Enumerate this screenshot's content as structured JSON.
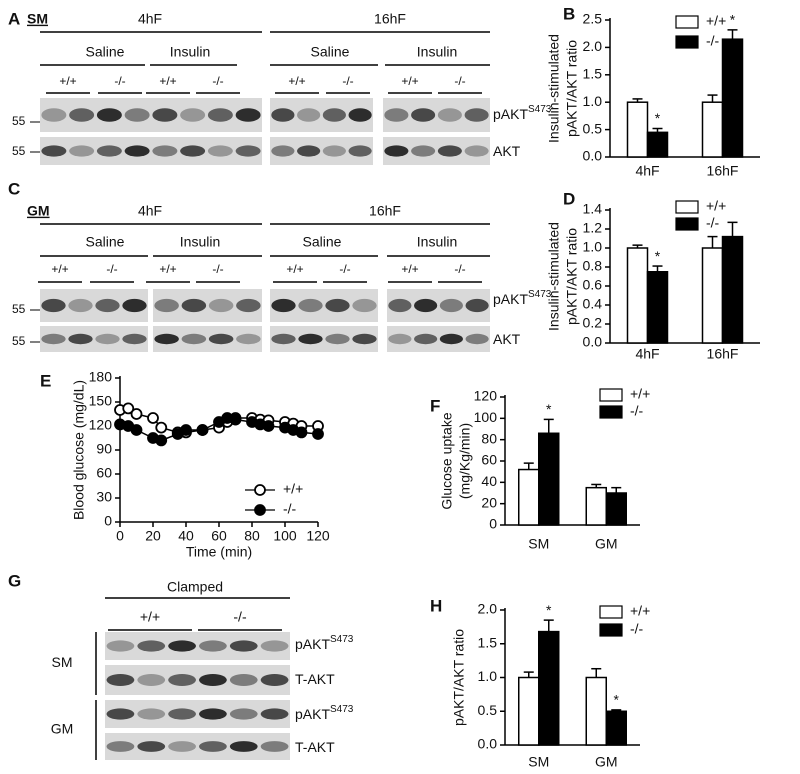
{
  "chart_data": [
    {
      "type": "bar",
      "panel": "B",
      "ylabel": [
        "Insulin-stimulated",
        "pAKT/AKT ratio"
      ],
      "categories": [
        "4hF",
        "16hF"
      ],
      "series": [
        {
          "name": "+/+",
          "color": "#ffffff",
          "values": [
            1.0,
            1.0
          ],
          "errors": [
            0.06,
            0.13
          ],
          "significance": [
            null,
            null
          ]
        },
        {
          "name": "-/-",
          "color": "#000000",
          "values": [
            0.45,
            2.15
          ],
          "errors": [
            0.07,
            0.17
          ],
          "significance": [
            "*",
            "*"
          ]
        }
      ],
      "ylim": [
        0,
        2.5
      ],
      "yticks": [
        {
          "value": 0,
          "label": "0.0"
        },
        0.5,
        {
          "value": 1,
          "label": "1.0"
        },
        1.5,
        {
          "value": 2,
          "label": "2.0"
        },
        2.5
      ]
    },
    {
      "type": "bar",
      "panel": "D",
      "ylabel": [
        "Insulin-stimulated",
        "pAKT/AKT ratio"
      ],
      "categories": [
        "4hF",
        "16hF"
      ],
      "series": [
        {
          "name": "+/+",
          "color": "#ffffff",
          "values": [
            1.0,
            1.0
          ],
          "errors": [
            0.03,
            0.12
          ],
          "significance": [
            null,
            null
          ]
        },
        {
          "name": "-/-",
          "color": "#000000",
          "values": [
            0.75,
            1.12
          ],
          "errors": [
            0.06,
            0.15
          ],
          "significance": [
            "*",
            null
          ]
        }
      ],
      "ylim": [
        0,
        1.4
      ],
      "yticks": [
        {
          "value": 0,
          "label": "0.0"
        },
        0.2,
        0.4,
        0.6,
        0.8,
        {
          "value": 1,
          "label": "1.0"
        },
        1.2,
        1.4
      ]
    },
    {
      "type": "line",
      "panel": "E",
      "ylabel": "Blood glucose (mg/dL)",
      "xlabel": "Time (min)",
      "x": [
        0,
        5,
        10,
        20,
        25,
        35,
        40,
        50,
        60,
        65,
        70,
        80,
        85,
        90,
        100,
        105,
        110,
        120
      ],
      "series": [
        {
          "name": "+/+",
          "color": "#ffffff",
          "values": [
            140,
            142,
            135,
            130,
            118,
            112,
            112,
            115,
            118,
            125,
            130,
            130,
            128,
            127,
            125,
            123,
            120,
            120
          ]
        },
        {
          "name": "-/-",
          "color": "#000000",
          "values": [
            122,
            120,
            115,
            105,
            102,
            110,
            115,
            115,
            125,
            130,
            128,
            125,
            122,
            120,
            118,
            115,
            112,
            110
          ]
        }
      ],
      "xlim": [
        0,
        120
      ],
      "xticks": [
        0,
        20,
        40,
        60,
        80,
        100,
        120
      ],
      "ylim": [
        0,
        180
      ],
      "yticks": [
        0,
        30,
        60,
        90,
        120,
        150,
        180
      ]
    },
    {
      "type": "bar",
      "panel": "F",
      "ylabel": [
        "Glucose uptake",
        "(mg/Kg/min)"
      ],
      "categories": [
        "SM",
        "GM"
      ],
      "series": [
        {
          "name": "+/+",
          "color": "#ffffff",
          "values": [
            52,
            35
          ],
          "errors": [
            6,
            3
          ],
          "significance": [
            null,
            null
          ]
        },
        {
          "name": "-/-",
          "color": "#000000",
          "values": [
            86,
            30
          ],
          "errors": [
            13,
            5
          ],
          "significance": [
            "*",
            null
          ]
        }
      ],
      "ylim": [
        0,
        120
      ],
      "yticks": [
        0,
        20,
        40,
        60,
        80,
        100,
        120
      ]
    },
    {
      "type": "bar",
      "panel": "H",
      "ylabel": "pAKT/AKT ratio",
      "categories": [
        "SM",
        "GM"
      ],
      "series": [
        {
          "name": "+/+",
          "color": "#ffffff",
          "values": [
            1.0,
            1.0
          ],
          "errors": [
            0.08,
            0.13
          ],
          "significance": [
            null,
            null
          ]
        },
        {
          "name": "-/-",
          "color": "#000000",
          "values": [
            1.68,
            0.5
          ],
          "errors": [
            0.17,
            0.02
          ],
          "significance": [
            "*",
            "*"
          ]
        }
      ],
      "ylim": [
        0,
        2.0
      ],
      "yticks": [
        {
          "value": 0,
          "label": "0.0"
        },
        0.5,
        {
          "value": 1,
          "label": "1.0"
        },
        1.5,
        {
          "value": 2,
          "label": "2.0"
        }
      ]
    }
  ],
  "blots": [
    {
      "panel": "A",
      "tissue": "SM",
      "times": [
        "4hF",
        "16hF"
      ],
      "conditions": [
        "Saline",
        "Insulin",
        "Saline",
        "Insulin"
      ],
      "genotypes": [
        "+/+",
        "-/-",
        "+/+",
        "-/-",
        "+/+",
        "-/-",
        "+/+",
        "-/-"
      ],
      "markers": [
        "55",
        "55"
      ],
      "rows": [
        {
          "name": "pAKT",
          "sup": "S473"
        },
        {
          "name": "AKT"
        }
      ]
    },
    {
      "panel": "C",
      "tissue": "GM",
      "times": [
        "4hF",
        "16hF"
      ],
      "conditions": [
        "Saline",
        "Insulin",
        "Saline",
        "Insulin"
      ],
      "genotypes": [
        "+/+",
        "-/-",
        "+/+",
        "-/-",
        "+/+",
        "-/-",
        "+/+",
        "-/-"
      ],
      "markers": [
        "55",
        "55"
      ],
      "rows": [
        {
          "name": "pAKT",
          "sup": "S473"
        },
        {
          "name": "AKT"
        }
      ]
    },
    {
      "panel": "G",
      "condition": "Clamped",
      "genotypes": [
        "+/+",
        "-/-"
      ],
      "groups": [
        {
          "name": "SM",
          "rows": [
            {
              "name": "pAKT",
              "sup": "S473"
            },
            {
              "name": "T-AKT"
            }
          ]
        },
        {
          "name": "GM",
          "rows": [
            {
              "name": "pAKT",
              "sup": "S473"
            },
            {
              "name": "T-AKT"
            }
          ]
        }
      ]
    }
  ]
}
